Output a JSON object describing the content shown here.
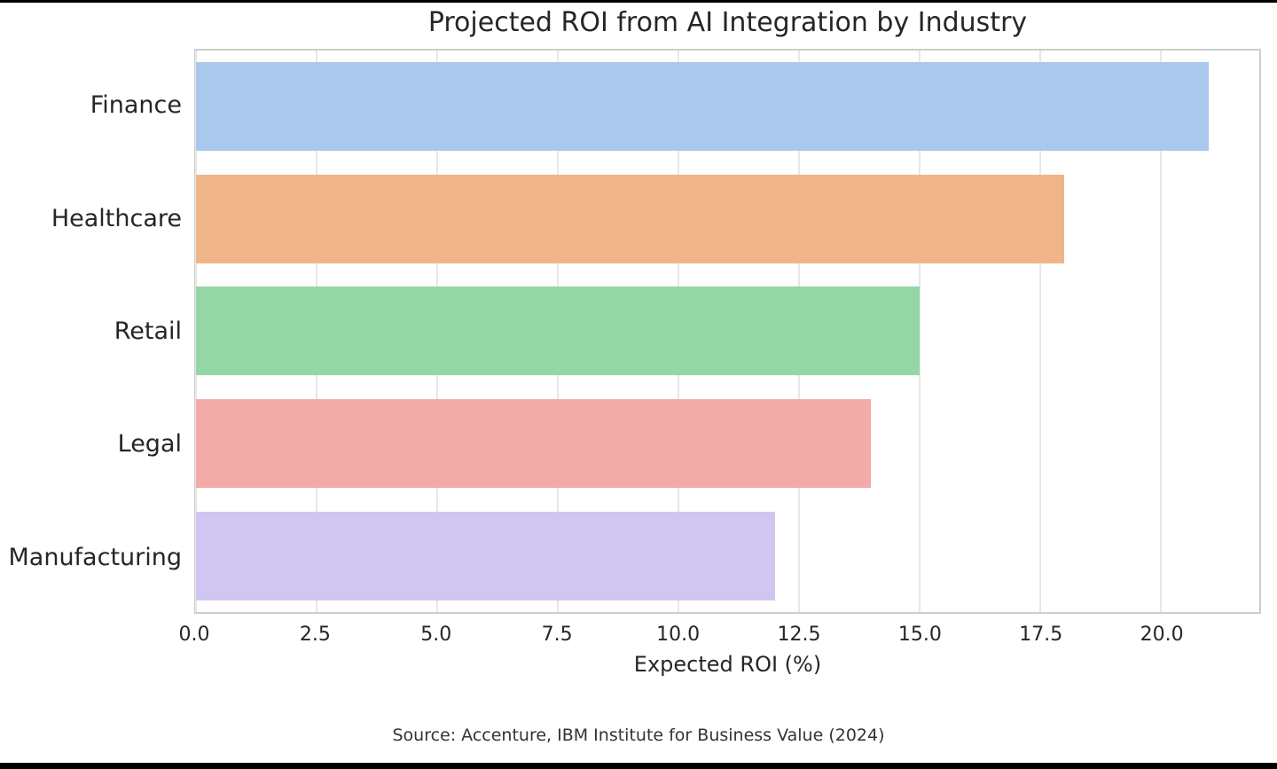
{
  "frame": {
    "top_edge_color": "#000000",
    "bottom_edge_color": "#000000",
    "background": "#ffffff"
  },
  "chart_data": {
    "type": "bar",
    "orientation": "horizontal",
    "title": "Projected ROI from AI Integration by Industry",
    "xlabel": "Expected ROI (%)",
    "ylabel": "",
    "categories": [
      "Finance",
      "Healthcare",
      "Retail",
      "Legal",
      "Manufacturing"
    ],
    "values": [
      21,
      18,
      15,
      14,
      12
    ],
    "bar_colors": [
      "#a9c8ec",
      "#f0b489",
      "#93d8a4",
      "#f2aba7",
      "#d1c5f1"
    ],
    "xlim": [
      0,
      22.05
    ],
    "xticks": [
      "0.0",
      "2.5",
      "5.0",
      "7.5",
      "10.0",
      "12.5",
      "15.0",
      "17.5",
      "20.0"
    ],
    "grid": "vertical",
    "legend": "none",
    "source_note": "Source: Accenture, IBM Institute for Business Value (2024)"
  },
  "style": {
    "grid_color": "#e7e7e7",
    "spine_color": "#cdcdcd",
    "text_color": "#262626"
  }
}
